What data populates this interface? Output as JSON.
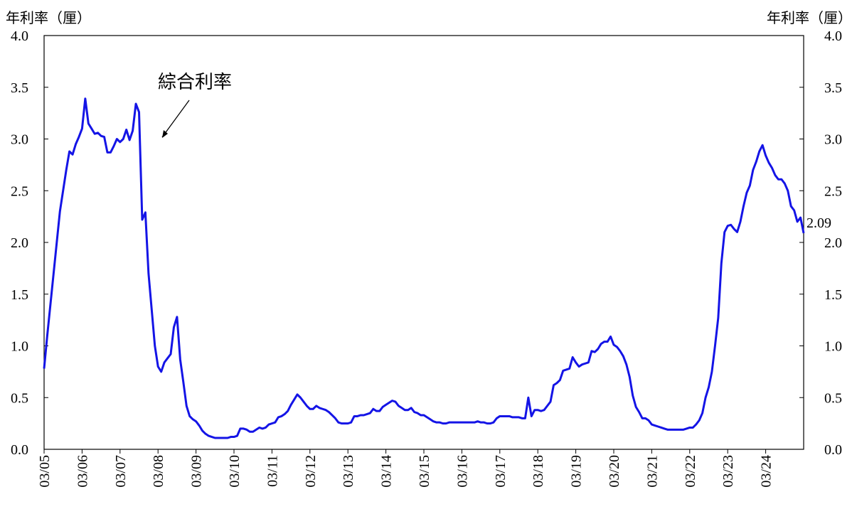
{
  "chart_data": {
    "type": "line",
    "y_label": "年利率（厘）",
    "y2_label": "年利率（厘）",
    "annotation": "綜合利率",
    "categories": [
      "03/05",
      null,
      null,
      null,
      null,
      null,
      null,
      null,
      null,
      null,
      null,
      null,
      "03/06",
      null,
      null,
      null,
      null,
      null,
      null,
      null,
      null,
      null,
      null,
      null,
      "03/07",
      null,
      null,
      null,
      null,
      null,
      null,
      null,
      null,
      null,
      null,
      null,
      "03/08",
      null,
      null,
      null,
      null,
      null,
      null,
      null,
      null,
      null,
      null,
      null,
      "03/09",
      null,
      null,
      null,
      null,
      null,
      null,
      null,
      null,
      null,
      null,
      null,
      "03/10",
      null,
      null,
      null,
      null,
      null,
      null,
      null,
      null,
      null,
      null,
      null,
      "03/11",
      null,
      null,
      null,
      null,
      null,
      null,
      null,
      null,
      null,
      null,
      null,
      "03/12",
      null,
      null,
      null,
      null,
      null,
      null,
      null,
      null,
      null,
      null,
      null,
      "03/13",
      null,
      null,
      null,
      null,
      null,
      null,
      null,
      null,
      null,
      null,
      null,
      "03/14",
      null,
      null,
      null,
      null,
      null,
      null,
      null,
      null,
      null,
      null,
      null,
      "03/15",
      null,
      null,
      null,
      null,
      null,
      null,
      null,
      null,
      null,
      null,
      null,
      "03/16",
      null,
      null,
      null,
      null,
      null,
      null,
      null,
      null,
      null,
      null,
      null,
      "03/17",
      null,
      null,
      null,
      null,
      null,
      null,
      null,
      null,
      null,
      null,
      null,
      "03/18",
      null,
      null,
      null,
      null,
      null,
      null,
      null,
      null,
      null,
      null,
      null,
      "03/19",
      null,
      null,
      null,
      null,
      null,
      null,
      null,
      null,
      null,
      null,
      null,
      "03/20",
      null,
      null,
      null,
      null,
      null,
      null,
      null,
      null,
      null,
      null,
      null,
      "03/21",
      null,
      null,
      null,
      null,
      null,
      null,
      null,
      null,
      null,
      null,
      null,
      "03/22",
      null,
      null,
      null,
      null,
      null,
      null,
      null,
      null,
      null,
      null,
      null,
      "03/23",
      null,
      null,
      null,
      null,
      null,
      null,
      null,
      null,
      null,
      null,
      null,
      "03/24",
      null,
      null,
      null,
      null,
      null,
      null,
      null,
      null,
      null,
      null,
      null,
      null
    ],
    "series": [
      {
        "color": "#1414e6",
        "values": [
          0.78,
          1.1,
          1.4,
          1.7,
          2.0,
          2.3,
          2.5,
          2.7,
          2.88,
          2.85,
          2.95,
          3.02,
          3.1,
          3.39,
          3.15,
          3.1,
          3.05,
          3.06,
          3.03,
          3.02,
          2.87,
          2.87,
          2.93,
          3.0,
          2.97,
          3.0,
          3.09,
          2.99,
          3.08,
          3.34,
          3.26,
          2.22,
          2.29,
          1.7,
          1.35,
          1.0,
          0.8,
          0.75,
          0.84,
          0.88,
          0.92,
          1.18,
          1.28,
          0.87,
          0.65,
          0.42,
          0.32,
          0.29,
          0.27,
          0.23,
          0.18,
          0.15,
          0.13,
          0.12,
          0.11,
          0.11,
          0.11,
          0.11,
          0.11,
          0.12,
          0.12,
          0.13,
          0.2,
          0.2,
          0.19,
          0.17,
          0.17,
          0.19,
          0.21,
          0.2,
          0.21,
          0.24,
          0.25,
          0.26,
          0.31,
          0.32,
          0.34,
          0.37,
          0.43,
          0.48,
          0.53,
          0.5,
          0.46,
          0.42,
          0.39,
          0.39,
          0.42,
          0.4,
          0.39,
          0.38,
          0.36,
          0.33,
          0.3,
          0.26,
          0.25,
          0.25,
          0.25,
          0.26,
          0.32,
          0.32,
          0.33,
          0.33,
          0.34,
          0.35,
          0.39,
          0.37,
          0.37,
          0.41,
          0.43,
          0.45,
          0.47,
          0.46,
          0.42,
          0.4,
          0.38,
          0.38,
          0.4,
          0.36,
          0.35,
          0.33,
          0.33,
          0.31,
          0.29,
          0.27,
          0.26,
          0.26,
          0.25,
          0.25,
          0.26,
          0.26,
          0.26,
          0.26,
          0.26,
          0.26,
          0.26,
          0.26,
          0.26,
          0.27,
          0.26,
          0.26,
          0.25,
          0.25,
          0.26,
          0.3,
          0.32,
          0.32,
          0.32,
          0.32,
          0.31,
          0.31,
          0.31,
          0.3,
          0.3,
          0.5,
          0.32,
          0.38,
          0.38,
          0.37,
          0.38,
          0.42,
          0.46,
          0.62,
          0.64,
          0.67,
          0.76,
          0.77,
          0.78,
          0.89,
          0.84,
          0.8,
          0.82,
          0.83,
          0.84,
          0.95,
          0.94,
          0.97,
          1.02,
          1.04,
          1.04,
          1.09,
          1.01,
          0.99,
          0.95,
          0.9,
          0.82,
          0.7,
          0.52,
          0.41,
          0.36,
          0.3,
          0.3,
          0.28,
          0.24,
          0.23,
          0.22,
          0.21,
          0.2,
          0.19,
          0.19,
          0.19,
          0.19,
          0.19,
          0.19,
          0.2,
          0.21,
          0.21,
          0.24,
          0.28,
          0.35,
          0.5,
          0.6,
          0.75,
          1.0,
          1.27,
          1.8,
          2.1,
          2.16,
          2.17,
          2.13,
          2.1,
          2.2,
          2.35,
          2.48,
          2.55,
          2.7,
          2.78,
          2.88,
          2.94,
          2.84,
          2.77,
          2.72,
          2.65,
          2.61,
          2.61,
          2.57,
          2.5,
          2.35,
          2.31,
          2.2,
          2.24,
          2.09
        ]
      }
    ],
    "ylim": [
      0,
      4
    ],
    "yticks": [
      {
        "value": 0,
        "label": "0.0"
      },
      {
        "value": 0.5,
        "label": "0.5"
      },
      {
        "value": 1,
        "label": "1.0"
      },
      {
        "value": 1.5,
        "label": "1.5"
      },
      {
        "value": 2,
        "label": "2.0"
      },
      {
        "value": 2.5,
        "label": "2.5"
      },
      {
        "value": 3,
        "label": "3.0"
      },
      {
        "value": 3.5,
        "label": "3.5"
      },
      {
        "value": 4,
        "label": "4.0"
      }
    ],
    "y2lim": [
      0,
      4
    ],
    "y2ticks": [
      {
        "value": 0,
        "label": "0.0"
      },
      {
        "value": 0.5,
        "label": "0.5"
      },
      {
        "value": 1,
        "label": "1.0"
      },
      {
        "value": 1.5,
        "label": "1.5"
      },
      {
        "value": 2,
        "label": "2.0"
      },
      {
        "value": 2.5,
        "label": "2.5"
      },
      {
        "value": 3,
        "label": "3.0"
      },
      {
        "value": 3.5,
        "label": "3.5"
      },
      {
        "value": 4,
        "label": "4.0"
      }
    ],
    "last_value_label": true,
    "grid": false
  }
}
